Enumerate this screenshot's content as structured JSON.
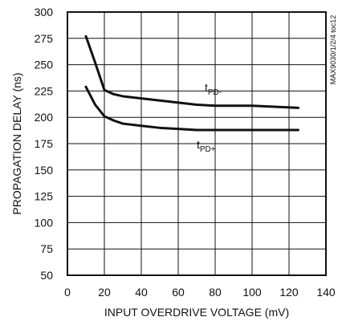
{
  "chart_data": {
    "type": "line",
    "xlabel": "INPUT OVERDRIVE VOLTAGE (mV)",
    "ylabel": "PROPAGATION DELAY (ns)",
    "xlim": [
      0,
      140
    ],
    "ylim": [
      50,
      300
    ],
    "x_ticks": [
      0,
      20,
      40,
      60,
      80,
      100,
      120,
      140
    ],
    "y_ticks": [
      50,
      75,
      100,
      125,
      150,
      175,
      200,
      225,
      250,
      275,
      300
    ],
    "grid": true,
    "series": [
      {
        "name": "tPD-",
        "label_main": "t",
        "label_sub": "PD-",
        "x": [
          10,
          15,
          20,
          25,
          30,
          40,
          50,
          60,
          70,
          80,
          100,
          125
        ],
        "y": [
          277,
          252,
          226,
          222,
          220,
          218,
          216,
          214,
          212,
          211,
          211,
          209
        ]
      },
      {
        "name": "tPD+",
        "label_main": "t",
        "label_sub": "PD+",
        "x": [
          10,
          15,
          20,
          25,
          30,
          40,
          50,
          60,
          70,
          80,
          100,
          125
        ],
        "y": [
          229,
          212,
          201,
          197,
          194,
          192,
          190,
          189,
          188,
          188,
          188,
          188
        ]
      }
    ],
    "side_note": "MAX9030/1/2/4 toc12",
    "colors": {
      "line": "#111111",
      "grid": "#111111",
      "background": "#ffffff"
    }
  }
}
